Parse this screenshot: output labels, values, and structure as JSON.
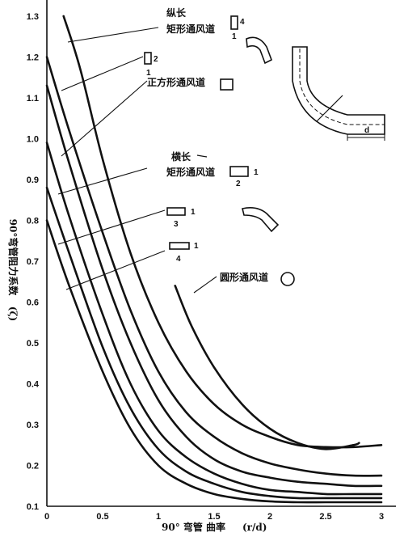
{
  "chart_data": {
    "type": "line",
    "xlabel": "90° 弯管 曲率",
    "xunit": "(r/d)",
    "ylabel": "90°弯管阻力系数",
    "ylabel_symbol": "(ζ)",
    "xlim": [
      0,
      3.0
    ],
    "ylim": [
      0.1,
      1.35
    ],
    "xticks": [
      0,
      0.5,
      1,
      1.5,
      2,
      2.5,
      3
    ],
    "xtick_labels": [
      "0",
      "0.5",
      "1",
      "1.5",
      "2",
      "2.5",
      "3"
    ],
    "yticks": [
      0.1,
      0.2,
      0.3,
      0.4,
      0.5,
      0.6,
      0.7,
      0.8,
      0.9,
      1.0,
      1.1,
      1.2,
      1.3
    ],
    "ytick_labels": [
      "0.1",
      "0.2",
      "0.3",
      "0.4",
      "0.5",
      "0.6",
      "0.7",
      "0.8",
      "0.9",
      "1.0",
      "1.1",
      "1.2",
      "1.3"
    ],
    "grid": false,
    "series": [
      {
        "name": "纵长矩形通风道 4:1",
        "x": [
          0.15,
          0.3,
          0.5,
          0.75,
          1.0,
          1.25,
          1.5,
          1.75,
          2.0,
          2.25,
          2.5,
          2.75,
          3.0
        ],
        "y": [
          1.3,
          1.17,
          0.95,
          0.72,
          0.55,
          0.43,
          0.35,
          0.3,
          0.27,
          0.25,
          0.245,
          0.245,
          0.25
        ]
      },
      {
        "name": "纵长矩形通风道 2:1",
        "x": [
          0.0,
          0.2,
          0.5,
          0.75,
          1.0,
          1.25,
          1.5,
          1.75,
          2.0,
          2.25,
          2.5,
          2.75,
          3.0
        ],
        "y": [
          1.2,
          1.02,
          0.77,
          0.58,
          0.43,
          0.33,
          0.27,
          0.23,
          0.205,
          0.19,
          0.18,
          0.175,
          0.175
        ]
      },
      {
        "name": "正方形通风道",
        "x": [
          0.0,
          0.2,
          0.5,
          0.75,
          1.0,
          1.25,
          1.5,
          1.75,
          2.0,
          2.25,
          2.5,
          2.75,
          3.0
        ],
        "y": [
          1.13,
          0.94,
          0.68,
          0.5,
          0.36,
          0.27,
          0.215,
          0.185,
          0.17,
          0.16,
          0.155,
          0.15,
          0.15
        ]
      },
      {
        "name": "横长矩形通风道 1:2",
        "x": [
          0.0,
          0.2,
          0.5,
          0.75,
          1.0,
          1.25,
          1.5,
          1.75,
          2.0,
          2.25,
          2.5,
          2.75,
          3.0
        ],
        "y": [
          0.99,
          0.81,
          0.57,
          0.4,
          0.285,
          0.22,
          0.18,
          0.155,
          0.14,
          0.135,
          0.13,
          0.13,
          0.13
        ]
      },
      {
        "name": "横长矩形通风道 1:3",
        "x": [
          0.0,
          0.2,
          0.5,
          0.75,
          1.0,
          1.25,
          1.5,
          1.75,
          2.0,
          2.25,
          2.5,
          2.75,
          3.0
        ],
        "y": [
          0.88,
          0.72,
          0.49,
          0.34,
          0.24,
          0.185,
          0.155,
          0.135,
          0.125,
          0.12,
          0.12,
          0.12,
          0.12
        ]
      },
      {
        "name": "横长矩形通风道 1:4",
        "x": [
          0.0,
          0.2,
          0.5,
          0.75,
          1.0,
          1.25,
          1.5,
          1.75,
          2.0,
          2.25,
          2.5,
          2.75,
          3.0
        ],
        "y": [
          0.8,
          0.64,
          0.43,
          0.29,
          0.2,
          0.155,
          0.13,
          0.118,
          0.112,
          0.11,
          0.11,
          0.11,
          0.11
        ]
      },
      {
        "name": "圆形通风道",
        "x": [
          1.15,
          1.3,
          1.5,
          1.75,
          2.0,
          2.25,
          2.5,
          2.75,
          2.8
        ],
        "y": [
          0.64,
          0.54,
          0.44,
          0.35,
          0.29,
          0.255,
          0.24,
          0.25,
          0.255
        ]
      }
    ],
    "annotations": {
      "tall_rect_line1": "纵长",
      "tall_rect_line2": "矩形通风道",
      "tall_4_top": "4",
      "tall_4_bottom": "1",
      "tall_2_top": "2",
      "tall_2_bottom": "1",
      "square": "正方形通风道",
      "wide_line1": "横长",
      "wide_line2": "矩形通风道",
      "wide_2_right": "1",
      "wide_2_bottom": "2",
      "wide_3_right": "1",
      "wide_3_bottom": "3",
      "wide_4_right": "1",
      "wide_4_bottom": "4",
      "round": "圆形通风道",
      "bend_d": "d"
    }
  },
  "colors": {
    "ink": "#111111",
    "paper": "#ffffff"
  }
}
